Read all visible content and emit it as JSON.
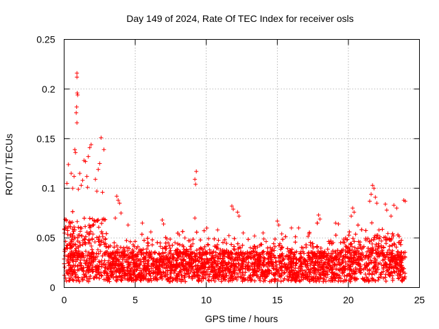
{
  "chart_data": {
    "type": "scatter",
    "title": "Day 149 of 2024, Rate Of TEC Index for receiver osls",
    "xlabel": "GPS time / hours",
    "ylabel": "ROTI / TECUs",
    "xlim": [
      0,
      25
    ],
    "ylim": [
      0,
      0.25
    ],
    "grid": true,
    "marker": "+",
    "color": "#ff0000",
    "x_ticks": [
      0,
      5,
      10,
      15,
      20,
      25
    ],
    "x_tick_labels": [
      "0",
      "5",
      "10",
      "15",
      "20",
      "25"
    ],
    "y_ticks": [
      0,
      0.05,
      0.1,
      0.15,
      0.2,
      0.25
    ],
    "y_tick_labels": [
      "0",
      "0.05",
      "0.1",
      "0.15",
      "0.2",
      "0.25"
    ],
    "series": [
      {
        "name": "ROTI",
        "points": [
          [
            0.9,
            0.216
          ],
          [
            0.9,
            0.212
          ],
          [
            0.92,
            0.196
          ],
          [
            0.95,
            0.194
          ],
          [
            0.88,
            0.182
          ],
          [
            0.85,
            0.176
          ],
          [
            0.9,
            0.166
          ],
          [
            2.6,
            0.151
          ],
          [
            2.8,
            0.139
          ],
          [
            1.9,
            0.144
          ],
          [
            1.8,
            0.141
          ],
          [
            0.75,
            0.139
          ],
          [
            0.8,
            0.136
          ],
          [
            0.3,
            0.124
          ],
          [
            1.4,
            0.128
          ],
          [
            1.5,
            0.127
          ],
          [
            1.7,
            0.132
          ],
          [
            2.5,
            0.125
          ],
          [
            2.4,
            0.119
          ],
          [
            9.3,
            0.117
          ],
          [
            9.2,
            0.109
          ],
          [
            9.25,
            0.104
          ],
          [
            9.2,
            0.07
          ],
          [
            0.5,
            0.115
          ],
          [
            0.7,
            0.112
          ],
          [
            1.1,
            0.115
          ],
          [
            1.3,
            0.108
          ],
          [
            1.6,
            0.112
          ],
          [
            2.2,
            0.109
          ],
          [
            0.2,
            0.105
          ],
          [
            0.6,
            0.1
          ],
          [
            1.0,
            0.099
          ],
          [
            1.2,
            0.103
          ],
          [
            1.65,
            0.101
          ],
          [
            2.3,
            0.097
          ],
          [
            2.7,
            0.096
          ],
          [
            21.7,
            0.103
          ],
          [
            21.8,
            0.1
          ],
          [
            21.6,
            0.094
          ],
          [
            21.9,
            0.091
          ],
          [
            21.5,
            0.087
          ],
          [
            22.0,
            0.085
          ],
          [
            23.9,
            0.088
          ],
          [
            24.0,
            0.087
          ],
          [
            23.2,
            0.083
          ],
          [
            23.4,
            0.08
          ],
          [
            11.8,
            0.082
          ],
          [
            11.9,
            0.079
          ],
          [
            12.2,
            0.076
          ],
          [
            12.3,
            0.072
          ],
          [
            3.7,
            0.092
          ],
          [
            3.8,
            0.088
          ],
          [
            3.9,
            0.085
          ],
          [
            4.0,
            0.075
          ],
          [
            3.6,
            0.07
          ],
          [
            17.9,
            0.073
          ],
          [
            18.0,
            0.069
          ],
          [
            17.8,
            0.065
          ],
          [
            20.3,
            0.08
          ],
          [
            20.4,
            0.076
          ],
          [
            20.2,
            0.072
          ],
          [
            22.6,
            0.084
          ],
          [
            22.7,
            0.078
          ],
          [
            23.0,
            0.072
          ],
          [
            4.5,
            0.063
          ],
          [
            5.5,
            0.065
          ],
          [
            6.9,
            0.068
          ],
          [
            7.0,
            0.064
          ],
          [
            10.8,
            0.058
          ],
          [
            13.4,
            0.052
          ],
          [
            15.0,
            0.067
          ],
          [
            15.1,
            0.063
          ],
          [
            16.5,
            0.06
          ],
          [
            19.1,
            0.065
          ],
          [
            19.3,
            0.064
          ],
          [
            14.0,
            0.055
          ],
          [
            8.5,
            0.05
          ],
          [
            8.1,
            0.053
          ],
          [
            6.1,
            0.056
          ],
          [
            12.6,
            0.055
          ],
          [
            19.8,
            0.05
          ]
        ]
      }
    ]
  }
}
